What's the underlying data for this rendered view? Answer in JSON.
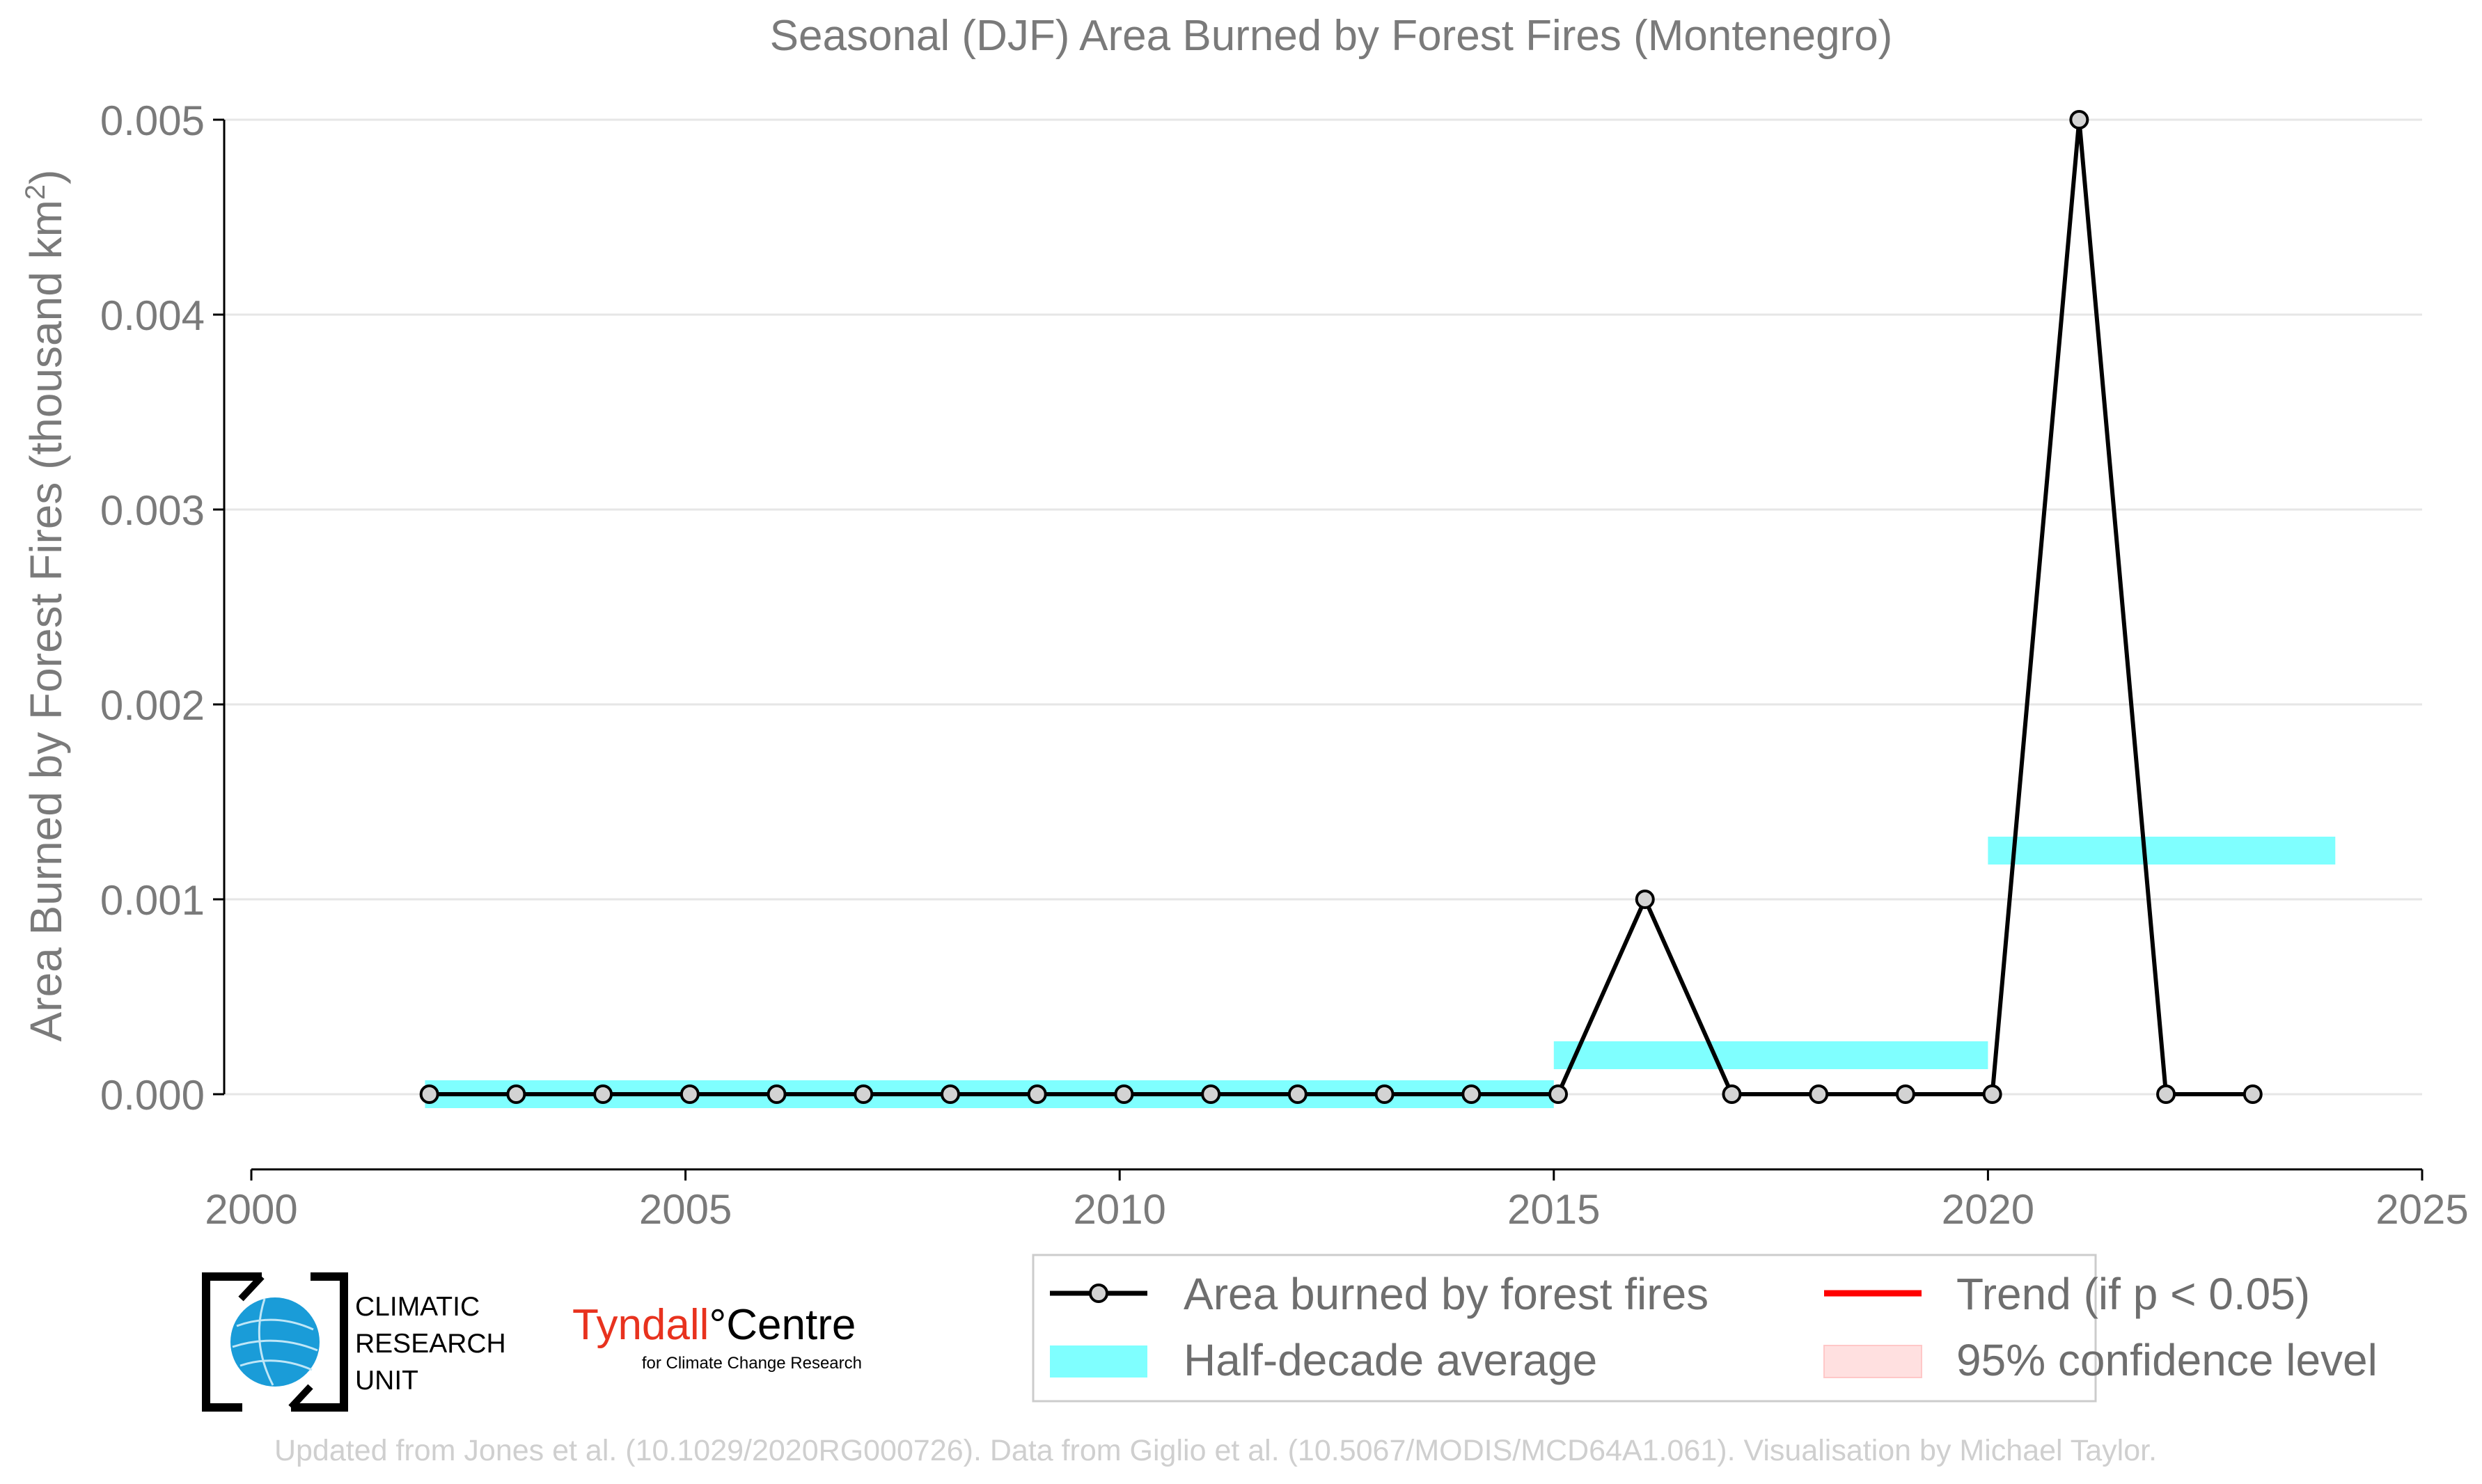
{
  "chart_data": {
    "type": "line",
    "title": "Seasonal (DJF) Area Burned by Forest Fires (Montenegro)",
    "ylabel": "Area Burned by Forest Fires (thousand km",
    "ylabel_sup": "2",
    "ylabel_end": ")",
    "xlabel": "",
    "xlim": [
      2000,
      2025
    ],
    "ylim": [
      -0.00037,
      0.0051
    ],
    "xticks": [
      2000,
      2005,
      2010,
      2015,
      2020,
      2025
    ],
    "xtick_labels": [
      "2000",
      "2005",
      "2010",
      "2015",
      "2020",
      "2025"
    ],
    "yticks": [
      0.0,
      0.001,
      0.002,
      0.003,
      0.004,
      0.005
    ],
    "ytick_labels": [
      "0.000",
      "0.001",
      "0.002",
      "0.003",
      "0.004",
      "0.005"
    ],
    "grid": "horizontal",
    "series": [
      {
        "name": "Area burned by forest fires",
        "x": [
          2002,
          2003,
          2004,
          2005,
          2006,
          2007,
          2008,
          2009,
          2010,
          2011,
          2012,
          2013,
          2014,
          2015,
          2016,
          2017,
          2018,
          2019,
          2020,
          2021,
          2022,
          2023
        ],
        "y": [
          0,
          0,
          0,
          0,
          0,
          0,
          0,
          0,
          0,
          0,
          0,
          0,
          0,
          0,
          0.001,
          0,
          0,
          0,
          0,
          0.005,
          0,
          0
        ]
      }
    ],
    "half_decade_average": {
      "name": "Half-decade average",
      "segments": [
        {
          "x_start": 2002,
          "x_end": 2015,
          "value": 0.0
        },
        {
          "x_start": 2015,
          "x_end": 2020,
          "value": 0.0002
        },
        {
          "x_start": 2020,
          "x_end": 2024,
          "value": 0.00125
        }
      ]
    },
    "legend": {
      "placement": "bottom-right",
      "entries": [
        {
          "label": "Area burned by forest fires",
          "kind": "line-marker",
          "color": "#000000"
        },
        {
          "label": "Trend (if p < 0.05)",
          "kind": "line",
          "color": "#ff0000"
        },
        {
          "label": "Half-decade average",
          "kind": "band",
          "color": "#7fffff"
        },
        {
          "label": "95% confidence level",
          "kind": "patch",
          "color": "#ffe0e0"
        }
      ]
    },
    "colors": {
      "line": "#000000",
      "marker_fill": "#d3d3d3",
      "band": "#7fffff",
      "trend": "#ff0000",
      "confidence": "#ffe0e0",
      "grid": "#e6e6e6",
      "text": "#7a7a7a"
    }
  },
  "logos": {
    "cru_line1": "CLIMATIC",
    "cru_line2": "RESEARCH",
    "cru_line3": "UNIT",
    "tyndall_main": "Tyndall",
    "tyndall_degree": "°",
    "tyndall_centre": "Centre",
    "tyndall_sub": "for Climate Change Research"
  },
  "footer": {
    "credit": "Updated from Jones et al. (10.1029/2020RG000726). Data from Giglio et al. (10.5067/MODIS/MCD64A1.061). Visualisation by Michael Taylor."
  }
}
